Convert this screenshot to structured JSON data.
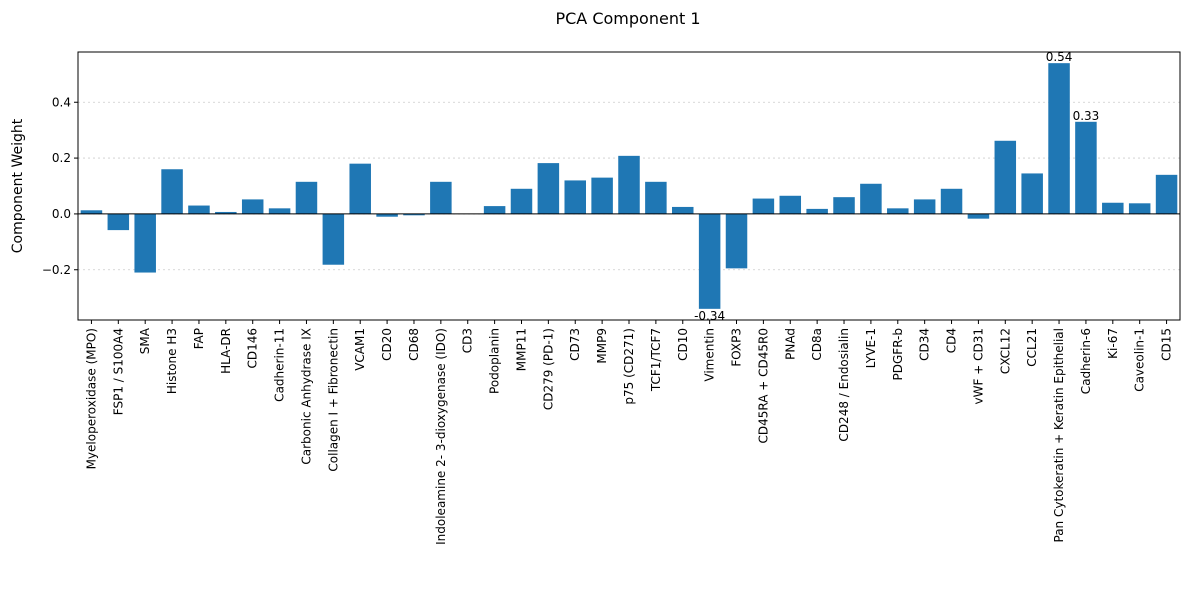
{
  "chart_data": {
    "type": "bar",
    "title": "PCA Component 1",
    "xlabel": "",
    "ylabel": "Component Weight",
    "ylim": [
      -0.38,
      0.58
    ],
    "yticks": [
      -0.2,
      0.0,
      0.2,
      0.4
    ],
    "ytick_labels": [
      "−0.2",
      "0.0",
      "0.2",
      "0.4"
    ],
    "grid": "horizontal-dotted",
    "bar_color": "#1f77b4",
    "categories": [
      "Myeloperoxidase (MPO)",
      "FSP1 / S100A4",
      "SMA",
      "Histone H3",
      "FAP",
      "HLA-DR",
      "CD146",
      "Cadherin-11",
      "Carbonic Anhydrase IX",
      "Collagen I + Fibronectin",
      "VCAM1",
      "CD20",
      "CD68",
      "Indoleamine 2- 3-dioxygenase (IDO)",
      "CD3",
      "Podoplanin",
      "MMP11",
      "CD279 (PD-1)",
      "CD73",
      "MMP9",
      "p75 (CD271)",
      "TCF1/TCF7",
      "CD10",
      "Vimentin",
      "FOXP3",
      "CD45RA + CD45R0",
      "PNAd",
      "CD8a",
      "CD248 / Endosialin",
      "LYVE-1",
      "PDGFR-b",
      "CD34",
      "CD4",
      "vWF + CD31",
      "CXCL12",
      "CCL21",
      "Pan Cytokeratin + Keratin Epithelial",
      "Cadherin-6",
      "Ki-67",
      "Caveolin-1",
      "CD15"
    ],
    "values": [
      0.013,
      -0.058,
      -0.21,
      0.16,
      0.03,
      0.007,
      0.052,
      0.02,
      0.115,
      -0.182,
      0.18,
      -0.01,
      -0.005,
      0.115,
      0.0,
      0.028,
      0.09,
      0.182,
      0.12,
      0.13,
      0.208,
      0.115,
      0.025,
      -0.34,
      -0.195,
      0.055,
      0.065,
      0.018,
      0.06,
      0.108,
      0.02,
      0.052,
      0.09,
      -0.017,
      0.262,
      0.145,
      0.54,
      0.33,
      0.04,
      0.038,
      0.14
    ],
    "annotations": [
      {
        "category": "Vimentin",
        "text": "-0.34"
      },
      {
        "category": "Pan Cytokeratin + Keratin Epithelial",
        "text": "0.54"
      },
      {
        "category": "Cadherin-6",
        "text": "0.33"
      }
    ]
  }
}
